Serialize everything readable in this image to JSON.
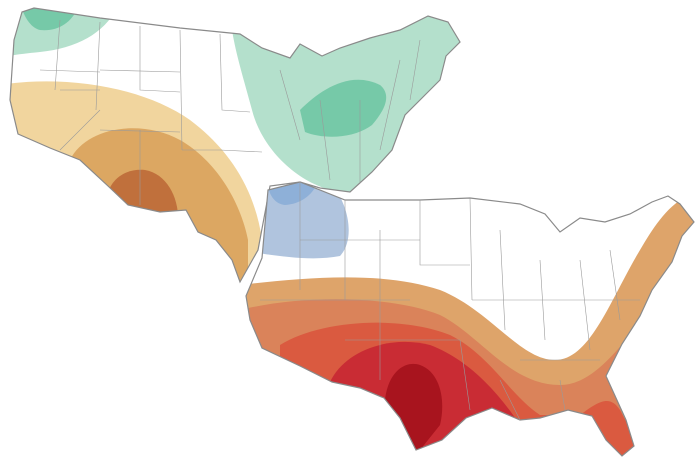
{
  "maps": [
    {
      "id": "upper-map",
      "regions": [
        {
          "name": "northwest-green-light",
          "color": "#b4e0cc"
        },
        {
          "name": "northwest-green-dark",
          "color": "#76c9a8"
        },
        {
          "name": "northeast-green-light",
          "color": "#b4e0cc"
        },
        {
          "name": "great-lakes-green-dark",
          "color": "#76c9a8"
        },
        {
          "name": "southwest-tan-light",
          "color": "#f1d59e"
        },
        {
          "name": "southwest-tan-mid",
          "color": "#dca762"
        },
        {
          "name": "southwest-brown-dark",
          "color": "#c0703c"
        }
      ]
    },
    {
      "id": "lower-map",
      "regions": [
        {
          "name": "plains-blue-light",
          "color": "#b0c4de"
        },
        {
          "name": "plains-blue-dark",
          "color": "#8eb0d8"
        },
        {
          "name": "south-orange-light",
          "color": "#dea46a"
        },
        {
          "name": "south-orange-mid",
          "color": "#da835a"
        },
        {
          "name": "south-red",
          "color": "#da5a40"
        },
        {
          "name": "south-red-dark",
          "color": "#c92c34"
        },
        {
          "name": "texas-crimson",
          "color": "#a8141e"
        }
      ]
    }
  ],
  "background": "#ffffff",
  "land": "#ffffff"
}
